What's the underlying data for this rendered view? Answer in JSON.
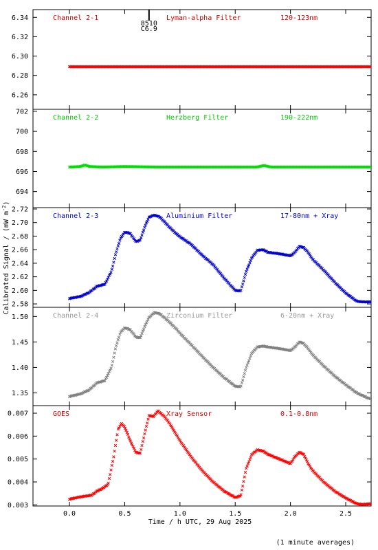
{
  "figure": {
    "ylabel": "Calibrated Signal / (mW m",
    "ylabel_sup": "-2",
    "ylabel_tail": ")",
    "xlabel": "Time / h UTC, 29 Aug 2025",
    "footnote": "(1 minute averages)",
    "flare_marker": {
      "time": 0.72,
      "top": "8510",
      "bottom": "C6.9"
    }
  },
  "chart_data": [
    {
      "type": "scatter",
      "panel": 1,
      "color": "#ff0000",
      "label_color": "#cc0000",
      "labels": {
        "channel": "Channel 2-1",
        "filter": "Lyman-alpha Filter",
        "band": "120-123nm"
      },
      "xlim": [
        -0.33,
        2.73
      ],
      "ylim": [
        6.245,
        6.348
      ],
      "yticks": [
        "6.26",
        "6.28",
        "6.30",
        "6.32",
        "6.34"
      ],
      "ytick_values": [
        6.26,
        6.28,
        6.3,
        6.32,
        6.34
      ],
      "series": [
        {
          "x": [
            0.0,
            2.73
          ],
          "y": [
            6.289,
            6.289
          ]
        }
      ]
    },
    {
      "type": "scatter",
      "panel": 2,
      "color": "#00dd00",
      "label_color": "#00cc00",
      "labels": {
        "channel": "Channel 2-2",
        "filter": "Herzberg Filter",
        "band": "190-222nm"
      },
      "xlim": [
        -0.33,
        2.73
      ],
      "ylim": [
        692.4,
        702.2
      ],
      "yticks": [
        "694",
        "696",
        "698",
        "700",
        "702"
      ],
      "ytick_values": [
        694,
        696,
        698,
        700,
        702
      ],
      "series": [
        {
          "x": [
            0.0,
            0.1,
            0.14,
            0.18,
            0.3,
            0.5,
            0.8,
            1.0,
            1.5,
            1.7,
            1.76,
            1.82,
            2.0,
            2.3,
            2.73
          ],
          "y": [
            696.45,
            696.5,
            696.65,
            696.5,
            696.45,
            696.5,
            696.45,
            696.45,
            696.45,
            696.45,
            696.6,
            696.45,
            696.45,
            696.45,
            696.45
          ]
        }
      ]
    },
    {
      "type": "scatter",
      "panel": 3,
      "color": "#0000cc",
      "label_color": "#0000cc",
      "labels": {
        "channel": "Channel 2-3",
        "filter": "Aluminium Filter",
        "band": "17-80nm + Xray"
      },
      "xlim": [
        -0.33,
        2.73
      ],
      "ylim": [
        2.575,
        2.722
      ],
      "yticks": [
        "2.58",
        "2.60",
        "2.62",
        "2.64",
        "2.66",
        "2.68",
        "2.70",
        "2.72"
      ],
      "ytick_values": [
        2.58,
        2.6,
        2.62,
        2.64,
        2.66,
        2.68,
        2.7,
        2.72
      ],
      "series": [
        {
          "x": [
            0.0,
            0.1,
            0.18,
            0.25,
            0.32,
            0.38,
            0.42,
            0.46,
            0.5,
            0.55,
            0.6,
            0.64,
            0.68,
            0.72,
            0.77,
            0.82,
            0.9,
            0.97,
            1.0,
            1.1,
            1.2,
            1.3,
            1.4,
            1.5,
            1.55,
            1.6,
            1.65,
            1.7,
            1.75,
            1.8,
            1.9,
            2.0,
            2.04,
            2.08,
            2.12,
            2.16,
            2.2,
            2.3,
            2.4,
            2.5,
            2.6,
            2.65,
            2.73
          ],
          "y": [
            2.588,
            2.591,
            2.597,
            2.606,
            2.609,
            2.628,
            2.655,
            2.676,
            2.686,
            2.684,
            2.672,
            2.674,
            2.693,
            2.708,
            2.711,
            2.708,
            2.694,
            2.683,
            2.679,
            2.668,
            2.652,
            2.638,
            2.618,
            2.6,
            2.599,
            2.628,
            2.648,
            2.659,
            2.66,
            2.656,
            2.654,
            2.651,
            2.656,
            2.665,
            2.663,
            2.656,
            2.646,
            2.63,
            2.612,
            2.596,
            2.584,
            2.583,
            2.583
          ]
        }
      ]
    },
    {
      "type": "scatter",
      "panel": 4,
      "color": "#808080",
      "label_color": "#999999",
      "labels": {
        "channel": "Channel 2-4",
        "filter": "Zirconium Filter",
        "band": "6-20nm + Xray"
      },
      "xlim": [
        -0.33,
        2.73
      ],
      "ylim": [
        1.325,
        1.518
      ],
      "yticks": [
        "1.35",
        "1.40",
        "1.45",
        "1.50"
      ],
      "ytick_values": [
        1.35,
        1.4,
        1.45,
        1.5
      ],
      "series": [
        {
          "x": [
            0.0,
            0.1,
            0.18,
            0.25,
            0.32,
            0.38,
            0.42,
            0.46,
            0.5,
            0.55,
            0.6,
            0.64,
            0.68,
            0.72,
            0.77,
            0.82,
            0.9,
            0.97,
            1.0,
            1.1,
            1.2,
            1.3,
            1.4,
            1.5,
            1.55,
            1.6,
            1.65,
            1.7,
            1.75,
            1.8,
            1.9,
            2.0,
            2.04,
            2.08,
            2.12,
            2.16,
            2.2,
            2.3,
            2.4,
            2.5,
            2.6,
            2.7,
            2.73
          ],
          "y": [
            1.343,
            1.348,
            1.356,
            1.37,
            1.374,
            1.4,
            1.44,
            1.468,
            1.478,
            1.474,
            1.46,
            1.458,
            1.48,
            1.498,
            1.508,
            1.505,
            1.49,
            1.475,
            1.467,
            1.445,
            1.422,
            1.4,
            1.38,
            1.363,
            1.362,
            1.4,
            1.428,
            1.44,
            1.442,
            1.44,
            1.437,
            1.433,
            1.44,
            1.45,
            1.447,
            1.437,
            1.425,
            1.403,
            1.383,
            1.366,
            1.35,
            1.34,
            1.338
          ]
        }
      ]
    },
    {
      "type": "scatter",
      "panel": 5,
      "color": "#ff0000",
      "label_color": "#cc0000",
      "labels": {
        "channel": "GOES",
        "filter": "Xray Sensor",
        "band": "0.1-0.8nm"
      },
      "xlim": [
        -0.33,
        2.73
      ],
      "ylim": [
        0.00295,
        0.00733
      ],
      "yticks": [
        "0.003",
        "0.004",
        "0.005",
        "0.006",
        "0.007"
      ],
      "ytick_values": [
        0.003,
        0.004,
        0.005,
        0.006,
        0.007
      ],
      "series": [
        {
          "x": [
            0.0,
            0.1,
            0.2,
            0.25,
            0.3,
            0.35,
            0.4,
            0.44,
            0.47,
            0.5,
            0.55,
            0.6,
            0.64,
            0.68,
            0.72,
            0.76,
            0.8,
            0.85,
            0.9,
            1.0,
            1.1,
            1.2,
            1.3,
            1.4,
            1.5,
            1.55,
            1.6,
            1.65,
            1.7,
            1.75,
            1.8,
            1.9,
            2.0,
            2.04,
            2.08,
            2.12,
            2.16,
            2.2,
            2.3,
            2.4,
            2.5,
            2.6,
            2.65,
            2.73
          ],
          "y": [
            0.00325,
            0.00335,
            0.00342,
            0.0036,
            0.00372,
            0.0039,
            0.0051,
            0.0063,
            0.00655,
            0.0064,
            0.0058,
            0.0053,
            0.00525,
            0.0061,
            0.0069,
            0.00685,
            0.0071,
            0.0069,
            0.0066,
            0.0058,
            0.0051,
            0.0045,
            0.004,
            0.0036,
            0.00332,
            0.0034,
            0.0046,
            0.0052,
            0.0054,
            0.00535,
            0.0052,
            0.005,
            0.0048,
            0.0051,
            0.0053,
            0.0052,
            0.0048,
            0.0045,
            0.004,
            0.0036,
            0.0033,
            0.00305,
            0.00302,
            0.00305
          ]
        }
      ]
    }
  ],
  "x_axis": {
    "ticks": [
      "0.0",
      "0.5",
      "1.0",
      "1.5",
      "2.0",
      "2.5"
    ],
    "tick_values": [
      0.0,
      0.5,
      1.0,
      1.5,
      2.0,
      2.5
    ]
  }
}
